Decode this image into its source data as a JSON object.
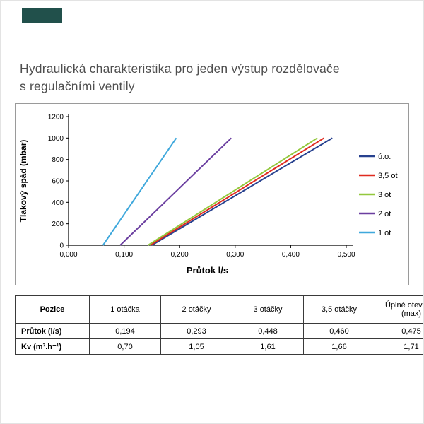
{
  "page": {
    "title_line1": "Hydraulická charakteristika pro jeden výstup rozdělovače",
    "title_line2": "s regulačními ventily",
    "corner_block_color": "#21504b"
  },
  "chart_data": {
    "type": "line",
    "title": "",
    "xlabel": "Průtok l/s",
    "ylabel": "Tlakový spád (mbar)",
    "xlim": [
      0,
      0.5
    ],
    "ylim": [
      0,
      1200
    ],
    "x_tick_labels": [
      "0,000",
      "0,100",
      "0,200",
      "0,300",
      "0,400",
      "0,500"
    ],
    "x_tick_values": [
      0,
      0.1,
      0.2,
      0.3,
      0.4,
      0.5
    ],
    "y_tick_labels": [
      "0",
      "200",
      "400",
      "600",
      "800",
      "1000",
      "1200"
    ],
    "y_tick_values": [
      0,
      200,
      400,
      600,
      800,
      1000,
      1200
    ],
    "grid": false,
    "legend_position": "right",
    "series": [
      {
        "name": "ú.o.",
        "color": "#27418f",
        "points": [
          [
            0.15,
            0
          ],
          [
            0.475,
            1000
          ]
        ]
      },
      {
        "name": "3,5 ot",
        "color": "#e02b20",
        "points": [
          [
            0.147,
            0
          ],
          [
            0.46,
            1000
          ]
        ]
      },
      {
        "name": "3 ot",
        "color": "#93c83d",
        "points": [
          [
            0.143,
            0
          ],
          [
            0.448,
            1000
          ]
        ]
      },
      {
        "name": "2 ot",
        "color": "#6b3fa0",
        "points": [
          [
            0.093,
            0
          ],
          [
            0.293,
            1000
          ]
        ]
      },
      {
        "name": "1 ot",
        "color": "#3fa8dc",
        "points": [
          [
            0.062,
            0
          ],
          [
            0.194,
            1000
          ]
        ]
      }
    ]
  },
  "table": {
    "headers": [
      "Pozice",
      "1 otáčka",
      "2 otáčky",
      "3 otáčky",
      "3,5 otáčky",
      "Úplně otevřený (max)"
    ],
    "rows": [
      {
        "label": "Průtok (l/s)",
        "values": [
          "0,194",
          "0,293",
          "0,448",
          "0,460",
          "0,475"
        ]
      },
      {
        "label": "Kv (m³.h⁻¹)",
        "values": [
          "0,70",
          "1,05",
          "1,61",
          "1,66",
          "1,71"
        ]
      }
    ]
  }
}
